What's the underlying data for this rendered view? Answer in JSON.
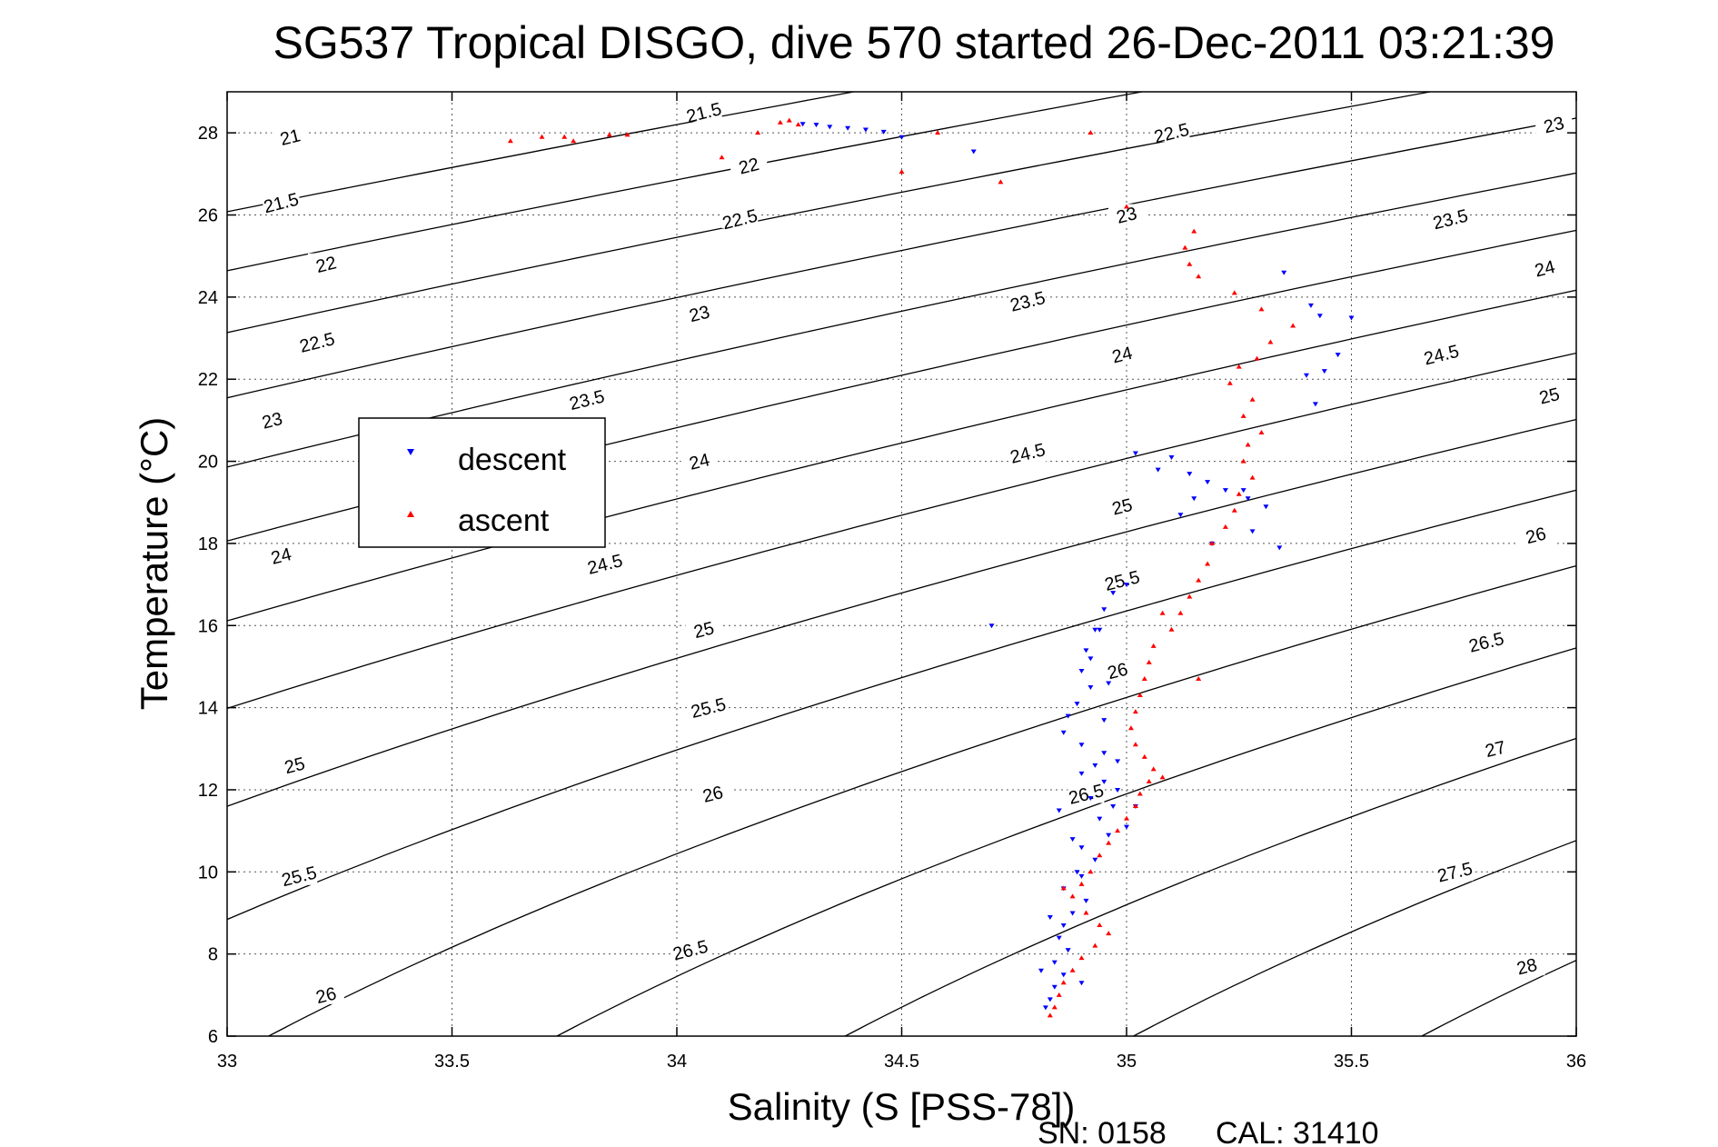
{
  "chart_data": {
    "type": "scatter",
    "title": "SG537 Tropical DISGO, dive 570 started 26-Dec-2011 03:21:39",
    "xlabel": "Salinity (S [PSS-78])",
    "ylabel": "Temperature (°C)",
    "xlim": [
      33,
      36
    ],
    "ylim": [
      6,
      29
    ],
    "xticks": [
      "33",
      "33.5",
      "34",
      "34.5",
      "35",
      "35.5",
      "36"
    ],
    "yticks": [
      "6",
      "8",
      "10",
      "12",
      "14",
      "16",
      "18",
      "20",
      "22",
      "24",
      "26",
      "28"
    ],
    "grid": true,
    "legend_position": "center-left",
    "series_colors": {
      "descent": "#0000ff",
      "ascent": "#ff0000"
    },
    "contour_levels": [
      "21",
      "21.5",
      "22",
      "22.5",
      "23",
      "23.5",
      "24",
      "24.5",
      "25",
      "25.5",
      "26",
      "26.5",
      "27",
      "27.5",
      "28"
    ],
    "series": [
      {
        "name": "descent",
        "marker": "triangle-down",
        "points": [
          [
            34.28,
            28.22
          ],
          [
            34.31,
            28.2
          ],
          [
            34.34,
            28.15
          ],
          [
            34.38,
            28.12
          ],
          [
            34.42,
            28.08
          ],
          [
            34.46,
            28.03
          ],
          [
            34.5,
            27.9
          ],
          [
            34.66,
            27.55
          ],
          [
            35.35,
            24.6
          ],
          [
            35.41,
            23.8
          ],
          [
            35.43,
            23.55
          ],
          [
            35.5,
            23.5
          ],
          [
            35.47,
            22.6
          ],
          [
            35.44,
            22.2
          ],
          [
            35.4,
            22.1
          ],
          [
            35.42,
            21.4
          ],
          [
            35.1,
            20.1
          ],
          [
            35.14,
            19.7
          ],
          [
            35.18,
            19.5
          ],
          [
            35.22,
            19.3
          ],
          [
            35.27,
            19.1
          ],
          [
            35.31,
            18.9
          ],
          [
            35.28,
            18.3
          ],
          [
            35.34,
            17.9
          ],
          [
            35.15,
            19.1
          ],
          [
            35.12,
            18.7
          ],
          [
            35.19,
            18.0
          ],
          [
            35.02,
            20.2
          ],
          [
            35.07,
            19.8
          ],
          [
            35.26,
            19.3
          ],
          [
            35.0,
            17.0
          ],
          [
            34.97,
            16.8
          ],
          [
            34.95,
            16.4
          ],
          [
            34.93,
            15.9
          ],
          [
            34.91,
            15.4
          ],
          [
            34.9,
            14.9
          ],
          [
            34.92,
            14.5
          ],
          [
            34.89,
            14.1
          ],
          [
            34.87,
            13.8
          ],
          [
            34.86,
            13.4
          ],
          [
            34.9,
            13.1
          ],
          [
            34.95,
            12.9
          ],
          [
            34.93,
            12.6
          ],
          [
            34.9,
            12.4
          ],
          [
            34.95,
            12.2
          ],
          [
            34.98,
            12.0
          ],
          [
            34.92,
            11.8
          ],
          [
            34.97,
            11.6
          ],
          [
            34.94,
            11.3
          ],
          [
            35.0,
            11.1
          ],
          [
            34.96,
            10.9
          ],
          [
            34.9,
            10.6
          ],
          [
            34.93,
            10.3
          ],
          [
            34.89,
            10.0
          ],
          [
            34.86,
            9.6
          ],
          [
            34.91,
            9.3
          ],
          [
            34.88,
            9.0
          ],
          [
            34.86,
            8.7
          ],
          [
            34.85,
            8.4
          ],
          [
            34.87,
            8.1
          ],
          [
            34.84,
            7.8
          ],
          [
            34.86,
            7.5
          ],
          [
            34.84,
            7.2
          ],
          [
            34.83,
            6.9
          ],
          [
            34.82,
            6.7
          ],
          [
            34.94,
            15.9
          ],
          [
            34.92,
            15.2
          ],
          [
            34.95,
            13.7
          ],
          [
            34.98,
            12.7
          ],
          [
            35.02,
            11.6
          ],
          [
            34.85,
            11.5
          ],
          [
            34.88,
            10.8
          ],
          [
            34.9,
            9.9
          ],
          [
            34.83,
            8.9
          ],
          [
            34.81,
            7.6
          ],
          [
            34.9,
            7.3
          ],
          [
            34.96,
            14.6
          ],
          [
            34.7,
            16.0
          ]
        ]
      },
      {
        "name": "ascent",
        "marker": "triangle-up",
        "points": [
          [
            33.63,
            27.8
          ],
          [
            33.7,
            27.9
          ],
          [
            33.75,
            27.9
          ],
          [
            33.77,
            27.8
          ],
          [
            33.85,
            27.95
          ],
          [
            33.89,
            27.95
          ],
          [
            34.18,
            28.0
          ],
          [
            34.1,
            27.4
          ],
          [
            34.23,
            28.25
          ],
          [
            34.25,
            28.3
          ],
          [
            34.27,
            28.2
          ],
          [
            34.5,
            27.05
          ],
          [
            34.58,
            28.0
          ],
          [
            34.72,
            26.8
          ],
          [
            34.92,
            28.0
          ],
          [
            35.0,
            26.2
          ],
          [
            35.15,
            25.6
          ],
          [
            35.13,
            25.2
          ],
          [
            35.14,
            24.8
          ],
          [
            35.16,
            24.5
          ],
          [
            35.24,
            24.1
          ],
          [
            35.3,
            23.7
          ],
          [
            35.37,
            23.3
          ],
          [
            35.32,
            22.9
          ],
          [
            35.29,
            22.5
          ],
          [
            35.25,
            22.3
          ],
          [
            35.23,
            21.9
          ],
          [
            35.28,
            21.5
          ],
          [
            35.26,
            21.1
          ],
          [
            35.3,
            20.7
          ],
          [
            35.27,
            20.4
          ],
          [
            35.26,
            20.0
          ],
          [
            35.28,
            19.6
          ],
          [
            35.25,
            19.2
          ],
          [
            35.24,
            18.8
          ],
          [
            35.22,
            18.4
          ],
          [
            35.19,
            18.0
          ],
          [
            35.18,
            17.5
          ],
          [
            35.16,
            17.1
          ],
          [
            35.14,
            16.7
          ],
          [
            35.12,
            16.3
          ],
          [
            35.1,
            15.9
          ],
          [
            35.06,
            15.5
          ],
          [
            35.05,
            15.1
          ],
          [
            35.04,
            14.7
          ],
          [
            35.03,
            14.3
          ],
          [
            35.02,
            13.9
          ],
          [
            35.01,
            13.5
          ],
          [
            35.02,
            13.1
          ],
          [
            35.04,
            12.8
          ],
          [
            35.06,
            12.5
          ],
          [
            35.05,
            12.2
          ],
          [
            35.03,
            11.9
          ],
          [
            35.02,
            11.6
          ],
          [
            35.0,
            11.3
          ],
          [
            34.98,
            11.0
          ],
          [
            34.96,
            10.7
          ],
          [
            34.94,
            10.4
          ],
          [
            34.92,
            10.0
          ],
          [
            34.9,
            9.7
          ],
          [
            34.88,
            9.4
          ],
          [
            34.91,
            9.0
          ],
          [
            34.94,
            8.7
          ],
          [
            34.96,
            8.5
          ],
          [
            34.93,
            8.2
          ],
          [
            34.9,
            7.9
          ],
          [
            34.88,
            7.6
          ],
          [
            34.86,
            7.3
          ],
          [
            34.85,
            7.0
          ],
          [
            34.84,
            6.7
          ],
          [
            34.83,
            6.5
          ],
          [
            35.08,
            16.3
          ],
          [
            35.16,
            14.7
          ],
          [
            35.08,
            12.3
          ],
          [
            34.86,
            9.6
          ]
        ]
      }
    ]
  },
  "legend": {
    "descent": "descent",
    "ascent": "ascent"
  },
  "footer": {
    "serial": "SN: 0158",
    "cal": "CAL: 31410"
  }
}
